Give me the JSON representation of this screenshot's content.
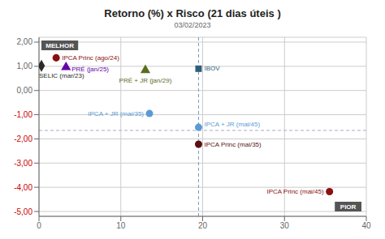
{
  "chart_data": {
    "type": "scatter",
    "title": "Retorno (%) x Risco (21 dias úteis )",
    "subtitle": "03/02/2023",
    "xlim": [
      0,
      40
    ],
    "xticks": [
      0,
      10,
      20,
      30,
      40
    ],
    "ylim": [
      -5.2,
      2.2
    ],
    "yticks": [
      {
        "value": -5.0,
        "label": "-5,00"
      },
      {
        "value": -4.0,
        "label": "-4,00"
      },
      {
        "value": -3.0,
        "label": "-3,00"
      },
      {
        "value": -2.0,
        "label": "-2,00"
      },
      {
        "value": -1.0,
        "label": "-1,00"
      },
      {
        "value": 0.0,
        "label": "0,00"
      },
      {
        "value": 1.0,
        "label": "1,00"
      },
      {
        "value": 2.0,
        "label": "2,00"
      }
    ],
    "grid": true,
    "vline": 19.5,
    "hline": -1.65,
    "annotations": [
      {
        "text": "MELHOR",
        "color": "#555555"
      },
      {
        "text": "PIOR",
        "color": "#555555"
      }
    ],
    "series": [
      {
        "name": "SELIC (mar/23)",
        "color": "#2a2a2a",
        "marker": "diamond",
        "x": [
          0.3
        ],
        "values": [
          1.02
        ]
      },
      {
        "name": "IPCA Princ (ago/24)",
        "color": "#8b1010",
        "marker": "circle",
        "x": [
          2.1
        ],
        "values": [
          1.35
        ]
      },
      {
        "name": "PRÉ (jan/25)",
        "color": "#6600aa",
        "marker": "triangle",
        "x": [
          3.3
        ],
        "values": [
          0.96
        ]
      },
      {
        "name": "PRÉ + JR (jan/29)",
        "color": "#5a6e1f",
        "marker": "triangle",
        "x": [
          13.0
        ],
        "values": [
          0.84
        ]
      },
      {
        "name": "IBOV",
        "color": "#2d5f7a",
        "marker": "square",
        "x": [
          19.5
        ],
        "values": [
          0.9
        ]
      },
      {
        "name": "IPCA + JR (mai/35)",
        "color": "#5b9bd5",
        "marker": "circle",
        "x": [
          13.5
        ],
        "values": [
          -0.95
        ]
      },
      {
        "name": "IPCA + JR (mai/45)",
        "color": "#5b9bd5",
        "marker": "circle",
        "x": [
          19.5
        ],
        "values": [
          -1.52
        ]
      },
      {
        "name": "IPCA Princ (mai/35)",
        "color": "#5a1010",
        "marker": "circle",
        "x": [
          19.5
        ],
        "values": [
          -2.22
        ]
      },
      {
        "name": "IPCA Princ (mai/45)",
        "color": "#8b1010",
        "marker": "circle",
        "x": [
          35.5
        ],
        "values": [
          -4.18
        ]
      }
    ]
  }
}
